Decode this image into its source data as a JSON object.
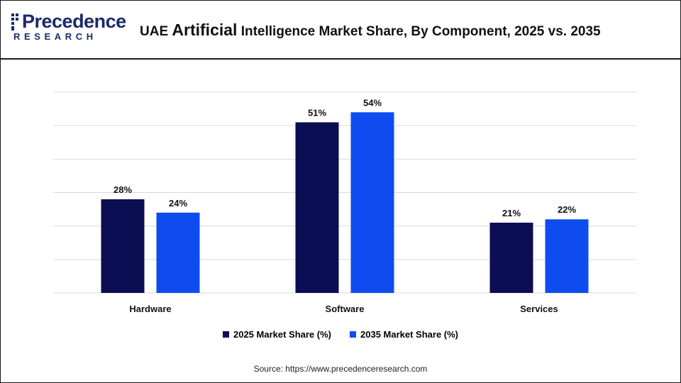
{
  "header": {
    "logo_word": "Precedence",
    "logo_sub": "RESEARCH",
    "title_prefix": "UAE ",
    "title_emphasis": "Artificial",
    "title_suffix": " Intelligence Market Share, By Component, 2025 vs. 2035"
  },
  "colors": {
    "series_2025": "#0b0e52",
    "series_2035": "#0f4cf0",
    "gridline": "#d9d9d9",
    "logo": "#1b2a6b"
  },
  "chart_data": {
    "type": "bar",
    "title": "UAE Artificial Intelligence Market Share, By Component, 2025 vs. 2035",
    "categories": [
      "Hardware",
      "Software",
      "Services"
    ],
    "series": [
      {
        "name": "2025 Market Share (%)",
        "values": [
          28,
          51,
          21
        ],
        "labels": [
          "28%",
          "51%",
          "21%"
        ]
      },
      {
        "name": "2035 Market Share (%)",
        "values": [
          24,
          54,
          22
        ],
        "labels": [
          "24%",
          "54%",
          "22%"
        ]
      }
    ],
    "ylim": [
      0,
      60
    ],
    "grid": true,
    "legend_position": "bottom-center",
    "xlabel": "",
    "ylabel": ""
  },
  "footer": {
    "source": "Source: https://www.precedenceresearch.com"
  }
}
